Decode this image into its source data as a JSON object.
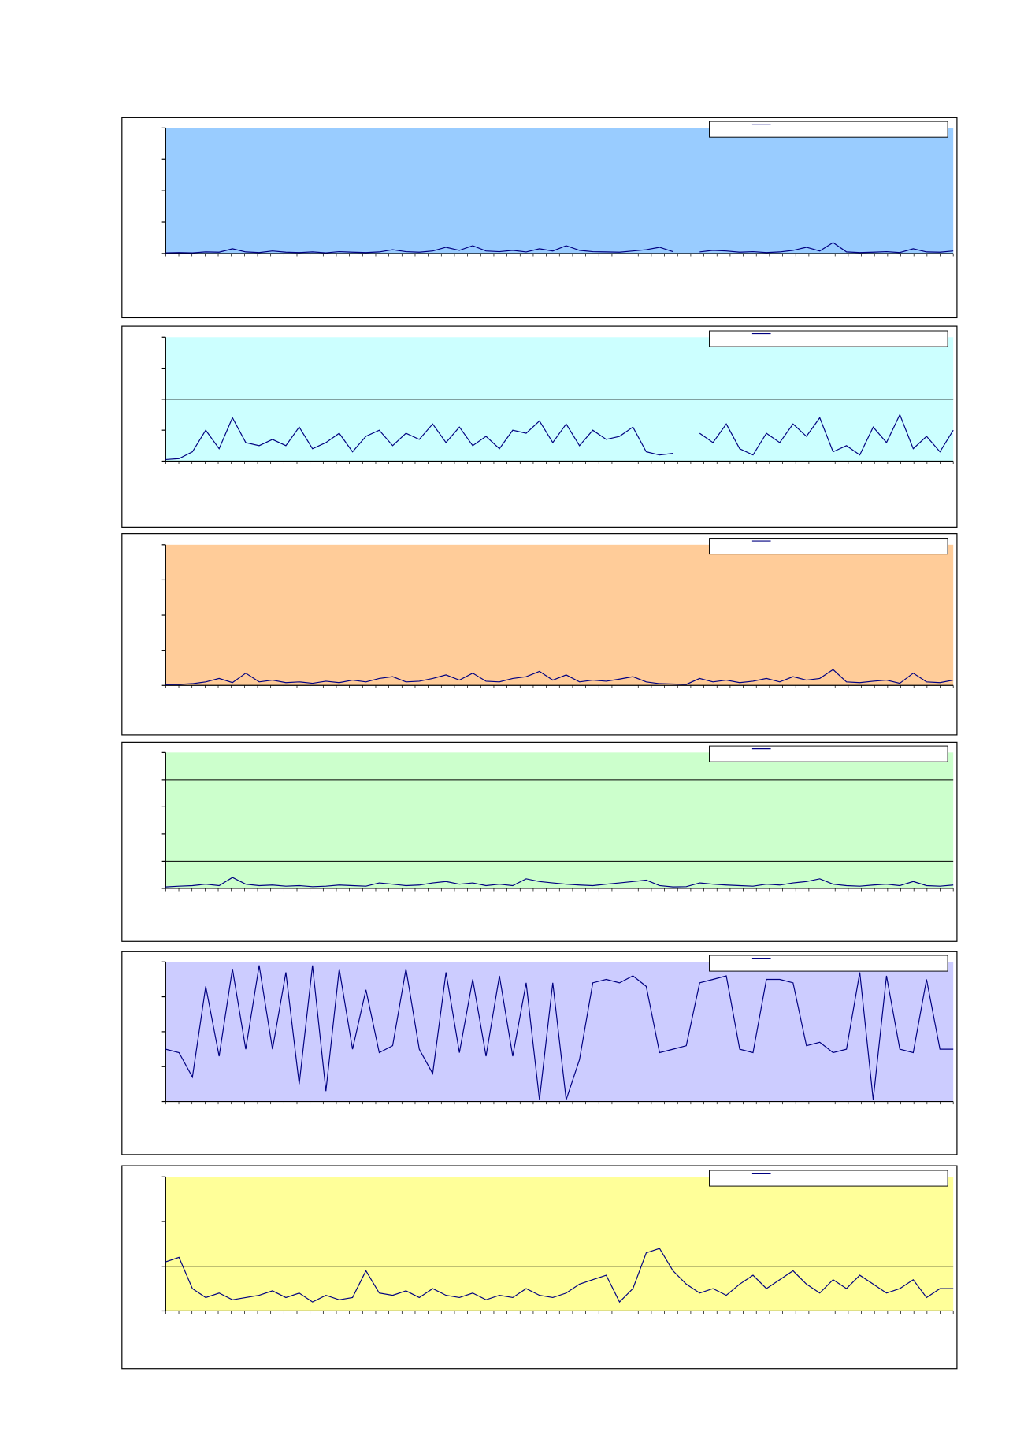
{
  "chart_data": [
    {
      "type": "line",
      "plot_color": "#99ccff",
      "ylim": [
        0,
        4
      ],
      "yticks": [
        0,
        1,
        2,
        3,
        4
      ],
      "grid_lines": [],
      "series": [
        {
          "color": "#000080",
          "values": [
            0.02,
            0.03,
            0.02,
            0.05,
            0.04,
            0.15,
            0.05,
            0.03,
            0.08,
            0.04,
            0.03,
            0.05,
            0.02,
            0.06,
            0.04,
            0.03,
            0.05,
            0.12,
            0.06,
            0.04,
            0.08,
            0.2,
            0.1,
            0.25,
            0.08,
            0.06,
            0.1,
            0.05,
            0.15,
            0.08,
            0.25,
            0.1,
            0.06,
            0.05,
            0.04,
            0.08,
            0.12,
            0.2,
            0.06,
            null,
            0.05,
            0.1,
            0.08,
            0.04,
            0.06,
            0.03,
            0.05,
            0.1,
            0.2,
            0.08,
            0.35,
            0.05,
            0.03,
            0.04,
            0.06,
            0.03,
            0.15,
            0.05,
            0.04,
            0.08
          ]
        }
      ]
    },
    {
      "type": "line",
      "plot_color": "#ccffff",
      "ylim": [
        0,
        4
      ],
      "yticks": [
        0,
        1,
        2,
        3,
        4
      ],
      "grid_lines": [
        2
      ],
      "series": [
        {
          "color": "#000080",
          "values": [
            0.05,
            0.08,
            0.3,
            1.0,
            0.4,
            1.4,
            0.6,
            0.5,
            0.7,
            0.5,
            1.1,
            0.4,
            0.6,
            0.9,
            0.3,
            0.8,
            1.0,
            0.5,
            0.9,
            0.7,
            1.2,
            0.6,
            1.1,
            0.5,
            0.8,
            0.4,
            1.0,
            0.9,
            1.3,
            0.6,
            1.2,
            0.5,
            1.0,
            0.7,
            0.8,
            1.1,
            0.3,
            0.2,
            0.25,
            null,
            0.9,
            0.6,
            1.2,
            0.4,
            0.2,
            0.9,
            0.6,
            1.2,
            0.8,
            1.4,
            0.3,
            0.5,
            0.2,
            1.1,
            0.6,
            1.5,
            0.4,
            0.8,
            0.3,
            1.0
          ]
        }
      ]
    },
    {
      "type": "line",
      "plot_color": "#ffcc99",
      "ylim": [
        0,
        4
      ],
      "yticks": [
        0,
        1,
        2,
        3,
        4
      ],
      "grid_lines": [],
      "series": [
        {
          "color": "#000080",
          "values": [
            0.02,
            0.03,
            0.05,
            0.1,
            0.2,
            0.08,
            0.35,
            0.1,
            0.15,
            0.08,
            0.1,
            0.06,
            0.12,
            0.08,
            0.15,
            0.1,
            0.2,
            0.25,
            0.1,
            0.12,
            0.2,
            0.3,
            0.15,
            0.35,
            0.12,
            0.1,
            0.2,
            0.25,
            0.4,
            0.15,
            0.3,
            0.1,
            0.15,
            0.12,
            0.18,
            0.25,
            0.1,
            0.05,
            0.04,
            0.03,
            0.2,
            0.1,
            0.15,
            0.08,
            0.12,
            0.2,
            0.1,
            0.25,
            0.15,
            0.2,
            0.45,
            0.1,
            0.08,
            0.12,
            0.15,
            0.06,
            0.35,
            0.1,
            0.08,
            0.15
          ]
        }
      ]
    },
    {
      "type": "line",
      "plot_color": "#ccffcc",
      "ylim": [
        0,
        5
      ],
      "yticks": [
        0,
        1,
        2,
        3,
        4,
        5
      ],
      "grid_lines": [
        1,
        4
      ],
      "series": [
        {
          "color": "#000080",
          "values": [
            0.05,
            0.08,
            0.1,
            0.15,
            0.1,
            0.4,
            0.15,
            0.1,
            0.12,
            0.08,
            0.1,
            0.06,
            0.08,
            0.12,
            0.1,
            0.08,
            0.2,
            0.15,
            0.1,
            0.12,
            0.2,
            0.25,
            0.15,
            0.2,
            0.1,
            0.15,
            0.1,
            0.35,
            0.25,
            0.2,
            0.15,
            0.12,
            0.1,
            0.15,
            0.2,
            0.25,
            0.3,
            0.1,
            0.05,
            0.06,
            0.2,
            0.15,
            0.12,
            0.1,
            0.08,
            0.15,
            0.12,
            0.2,
            0.25,
            0.35,
            0.15,
            0.1,
            0.08,
            0.12,
            0.15,
            0.1,
            0.25,
            0.1,
            0.08,
            0.12
          ]
        }
      ]
    },
    {
      "type": "line",
      "plot_color": "#ccccff",
      "ylim": [
        0,
        4
      ],
      "yticks": [
        0,
        1,
        2,
        3,
        4
      ],
      "grid_lines": [],
      "series": [
        {
          "color": "#000080",
          "values": [
            1.5,
            1.4,
            0.7,
            3.3,
            1.3,
            3.8,
            1.5,
            3.9,
            1.5,
            3.7,
            0.5,
            3.9,
            0.3,
            3.8,
            1.5,
            3.2,
            1.4,
            1.6,
            3.8,
            1.5,
            0.8,
            3.7,
            1.4,
            3.5,
            1.3,
            3.6,
            1.3,
            3.4,
            0.05,
            3.4,
            0.05,
            1.2,
            3.4,
            3.5,
            3.4,
            3.6,
            3.3,
            1.4,
            1.5,
            1.6,
            3.4,
            3.5,
            3.6,
            1.5,
            1.4,
            3.5,
            3.5,
            3.4,
            1.6,
            1.7,
            1.4,
            1.5,
            3.7,
            0.05,
            3.6,
            1.5,
            1.4,
            3.5,
            1.5,
            1.5
          ]
        }
      ]
    },
    {
      "type": "line",
      "plot_color": "#ffff99",
      "ylim": [
        0,
        3
      ],
      "yticks": [
        0,
        1,
        2,
        3
      ],
      "grid_lines": [
        1
      ],
      "series": [
        {
          "color": "#000080",
          "values": [
            1.1,
            1.2,
            0.5,
            0.3,
            0.4,
            0.25,
            0.3,
            0.35,
            0.45,
            0.3,
            0.4,
            0.2,
            0.35,
            0.25,
            0.3,
            0.9,
            0.4,
            0.35,
            0.45,
            0.3,
            0.5,
            0.35,
            0.3,
            0.4,
            0.25,
            0.35,
            0.3,
            0.5,
            0.35,
            0.3,
            0.4,
            0.6,
            0.7,
            0.8,
            0.2,
            0.5,
            1.3,
            1.4,
            0.9,
            0.6,
            0.4,
            0.5,
            0.35,
            0.6,
            0.8,
            0.5,
            0.7,
            0.9,
            0.6,
            0.4,
            0.7,
            0.5,
            0.8,
            0.6,
            0.4,
            0.5,
            0.7,
            0.3,
            0.5,
            0.5
          ]
        }
      ]
    }
  ]
}
